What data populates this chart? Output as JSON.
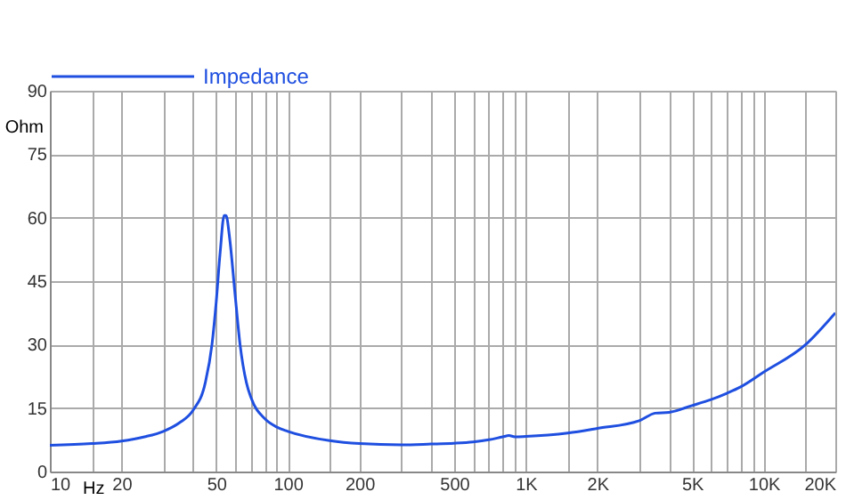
{
  "chart_data": {
    "type": "line",
    "xlabel": "Hz",
    "ylabel": "Ohm",
    "log": "x",
    "grid": true,
    "legend": "top",
    "marker": "none",
    "line_style": "solid",
    "x": [
      10,
      15,
      20,
      25,
      30,
      35,
      40,
      45,
      48,
      50,
      52,
      54,
      55,
      57,
      60,
      63,
      67,
      70,
      80,
      90,
      100,
      150,
      200,
      300,
      400,
      500,
      600,
      700,
      800,
      850,
      900,
      1000,
      1500,
      2000,
      3000,
      3500,
      4000,
      5000,
      6000,
      7000,
      8000,
      10000,
      15000,
      20000
    ],
    "series": [
      {
        "name": "Impedance",
        "color": "#1f4fe0",
        "values": [
          6.2,
          6.6,
          7.2,
          8.2,
          9.5,
          11.5,
          14.5,
          21,
          30,
          40,
          52,
          60.5,
          60.5,
          55,
          42,
          30,
          21,
          17.5,
          12.5,
          10.5,
          9.5,
          7.3,
          6.6,
          6.3,
          6.5,
          6.7,
          7,
          7.5,
          8.2,
          8.5,
          8.2,
          8.3,
          9.1,
          10.2,
          12,
          13.8,
          14,
          15.6,
          17,
          18.5,
          20,
          23.5,
          30,
          37.5
        ]
      }
    ],
    "xlim": [
      10,
      20000
    ],
    "xticks": [
      10,
      {
        "value": 15,
        "label": null
      },
      20,
      {
        "value": 30,
        "label": null
      },
      {
        "value": 40,
        "label": null
      },
      50,
      {
        "value": 60,
        "label": null
      },
      {
        "value": 70,
        "label": null
      },
      {
        "value": 80,
        "label": null
      },
      {
        "value": 90,
        "label": null
      },
      100,
      {
        "value": 150,
        "label": null
      },
      200,
      {
        "value": 300,
        "label": null
      },
      {
        "value": 400,
        "label": null
      },
      500,
      {
        "value": 600,
        "label": null
      },
      {
        "value": 700,
        "label": null
      },
      {
        "value": 800,
        "label": null
      },
      {
        "value": 900,
        "label": null
      },
      {
        "value": 1000,
        "label": "1K"
      },
      {
        "value": 1500,
        "label": null
      },
      {
        "value": 2000,
        "label": "2K"
      },
      {
        "value": 3000,
        "label": null
      },
      {
        "value": 4000,
        "label": null
      },
      {
        "value": 5000,
        "label": "5K"
      },
      {
        "value": 6000,
        "label": null
      },
      {
        "value": 7000,
        "label": null
      },
      {
        "value": 8000,
        "label": null
      },
      {
        "value": 9000,
        "label": null
      },
      {
        "value": 10000,
        "label": "10K"
      },
      {
        "value": 15000,
        "label": null
      },
      {
        "value": 20000,
        "label": "20K"
      }
    ],
    "ylim": [
      0,
      90
    ],
    "yticks": [
      0,
      15,
      30,
      45,
      60,
      75,
      90
    ]
  }
}
